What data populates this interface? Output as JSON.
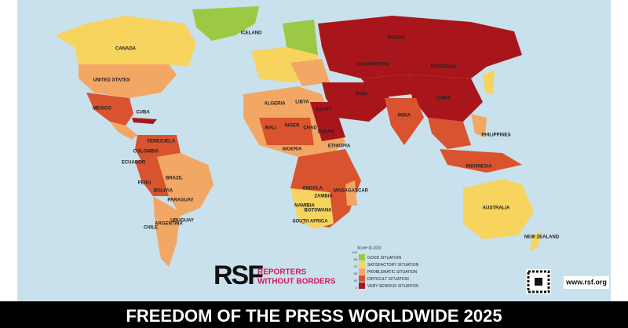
{
  "map": {
    "title": "FREEDOM OF THE PRESS WORLDWIDE 2025",
    "labels": [
      "CANADA",
      "UNITED STATES",
      "MEXICO",
      "CUBA",
      "VENEZUELA",
      "COLOMBIA",
      "ECUADOR",
      "PERU",
      "BRAZIL",
      "BOLIVIA",
      "PARAGUAY",
      "CHILE",
      "ARGENTINA",
      "URUGUAY",
      "ICELAND",
      "RUSSIA",
      "KAZAKHSTAN",
      "MONGOLIA",
      "CHINA",
      "INDIA",
      "IRAN",
      "ALGERIA",
      "LIBYA",
      "EGYPT",
      "MALI",
      "NIGER",
      "CHAD",
      "SUDAN",
      "ETHIOPIA",
      "NIGERIA",
      "ANGOLA",
      "ZAMBIA",
      "NAMIBIA",
      "BOTSWANA",
      "SOUTH AFRICA",
      "MADAGASCAR",
      "PHILIPPINES",
      "INDONESIA",
      "AUSTRALIA",
      "NEW ZEALAND"
    ],
    "legend": {
      "title": "Score (0-100)",
      "scale": [
        100,
        85,
        70,
        55,
        40,
        0
      ],
      "items": [
        {
          "label": "GOOD SITUATION",
          "color": "#9cc944"
        },
        {
          "label": "SATISFACTORY SITUATION",
          "color": "#f6d45e"
        },
        {
          "label": "PROBLEMATIC SITUATION",
          "color": "#f3a765"
        },
        {
          "label": "DIFFICULT SITUATION",
          "color": "#d9532e"
        },
        {
          "label": "VERY SERIOUS SITUATION",
          "color": "#a8161b"
        }
      ]
    },
    "logo": {
      "mark": "RSF",
      "line1": "REPORTERS",
      "line2": "WITHOUT BORDERS"
    },
    "website": "www.rsf.org"
  }
}
